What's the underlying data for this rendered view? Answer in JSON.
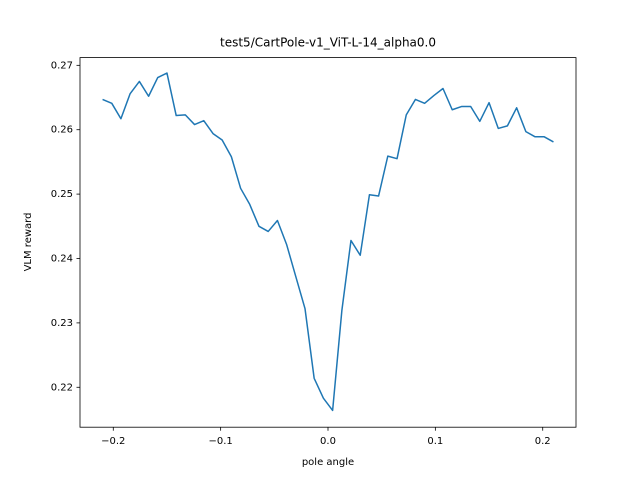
{
  "chart_data": {
    "type": "line",
    "title": "test5/CartPole-v1_ViT-L-14_alpha0.0",
    "x_label": "pole angle",
    "y_label": "VLM reward",
    "x": [
      -0.21,
      -0.2014,
      -0.1929,
      -0.1843,
      -0.1757,
      -0.1671,
      -0.1586,
      -0.15,
      -0.1414,
      -0.1329,
      -0.1243,
      -0.1157,
      -0.1071,
      -0.0986,
      -0.09,
      -0.0814,
      -0.0729,
      -0.0643,
      -0.0557,
      -0.0471,
      -0.0386,
      -0.03,
      -0.0214,
      -0.0129,
      -0.0043,
      0.0043,
      0.0129,
      0.0214,
      0.03,
      0.0386,
      0.0471,
      0.0557,
      0.0643,
      0.0729,
      0.0814,
      0.09,
      0.0986,
      0.1071,
      0.1157,
      0.1243,
      0.1329,
      0.1414,
      0.15,
      0.1586,
      0.1671,
      0.1757,
      0.1843,
      0.1929,
      0.2014,
      0.21
    ],
    "series": [
      {
        "color": "#1f77b4",
        "values": [
          0.2647,
          0.2641,
          0.2617,
          0.2656,
          0.2675,
          0.2652,
          0.2681,
          0.2688,
          0.2622,
          0.2623,
          0.2608,
          0.2614,
          0.2594,
          0.2584,
          0.2558,
          0.2509,
          0.2484,
          0.245,
          0.2442,
          0.2459,
          0.2422,
          0.2372,
          0.2322,
          0.2214,
          0.2183,
          0.2164,
          0.2319,
          0.2428,
          0.2405,
          0.2499,
          0.2497,
          0.2559,
          0.2555,
          0.2623,
          0.2647,
          0.2641,
          0.2653,
          0.2664,
          0.2631,
          0.2636,
          0.2636,
          0.2613,
          0.2642,
          0.2602,
          0.2606,
          0.2634,
          0.2597,
          0.2589,
          0.2589,
          0.2581
        ]
      }
    ],
    "xlim": [
      -0.231,
      0.231
    ],
    "xticks": [
      {
        "value": -0.2,
        "label": "−0.2"
      },
      {
        "value": -0.1,
        "label": "−0.1"
      },
      {
        "value": 0,
        "label": "0.0"
      },
      0.1,
      0.2
    ],
    "ylim": [
      0.2138,
      0.2712
    ],
    "yticks": [
      0.22,
      0.23,
      0.24,
      0.25,
      0.26,
      0.27
    ]
  }
}
